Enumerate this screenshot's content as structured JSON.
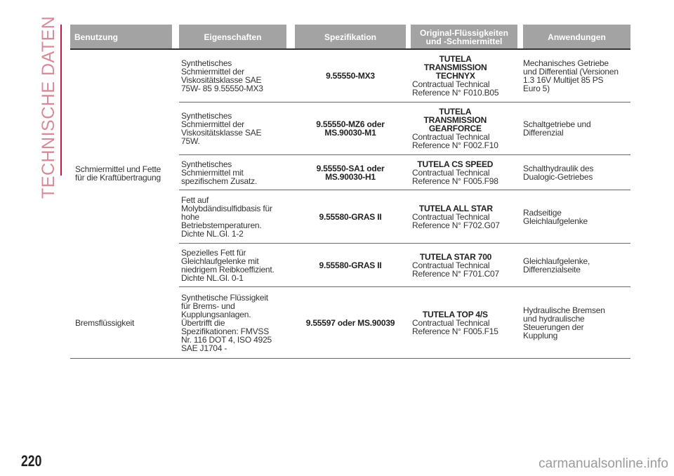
{
  "section_title": "TECHNISCHE DATEN",
  "page_number": "220",
  "watermark": "carmanualsonline.info",
  "colors": {
    "accent": "#c8193c",
    "header_bg": "#a3a3a3"
  },
  "headers": [
    "Benutzung",
    "Eigenschaften",
    "Spezifikation",
    "Original-Flüssigkeiten\nund -Schmiermittel",
    "Anwendungen"
  ],
  "groups": [
    {
      "label": "Schmiermittel und Fette\nfür die Kraftübertragung"
    },
    {
      "label": "Bremsflüssigkeit"
    }
  ],
  "rows": [
    {
      "properties": "Synthetisches\nSchmiermittel der\nViskositätsklasse SAE\n75W- 85 9.55550-MX3",
      "spec": "9.55550-MX3",
      "product": "TUTELA\nTRANSMISSION\nTECHNYX",
      "reference": "Contractual Technical\nReference N° F010.B05",
      "application": "Mechanisches Getriebe\nund Differential (Versionen\n1.3 16V Multijet 85 PS\nEuro 5)"
    },
    {
      "properties": "Synthetisches\nSchmiermittel der\nViskositätsklasse SAE\n75W.",
      "spec": "9.55550-MZ6 oder\nMS.90030-M1",
      "product": "TUTELA\nTRANSMISSION\nGEARFORCE",
      "reference": "Contractual Technical\nReference N° F002.F10",
      "application": "Schaltgetriebe und\nDifferenzial"
    },
    {
      "properties": "Synthetisches\nSchmiermittel mit\nspezifischem Zusatz.",
      "spec": "9.55550-SA1 oder\nMS.90030-H1",
      "product": "TUTELA CS SPEED",
      "reference": "Contractual Technical\nReference N° F005.F98",
      "application": "Schalthydraulik des\nDualogic-Getriebes"
    },
    {
      "properties": "Fett auf\nMolybdändisulfidbasis für\nhohe\nBetriebstemperaturen.\nDichte NL.Gl. 1-2",
      "spec": "9.55580-GRAS II",
      "product": "TUTELA ALL STAR",
      "reference": "Contractual Technical\nReference N° F702.G07",
      "application": "Radseitige\nGleichlaufgelenke"
    },
    {
      "properties": "Spezielles Fett für\nGleichlaufgelenke mit\nniedrigem Reibkoeffizient.\nDichte NL.Gl. 0-1",
      "spec": "9.55580-GRAS II",
      "product": "TUTELA STAR 700",
      "reference": "Contractual Technical\nReference N° F701.C07",
      "application": "Gleichlaufgelenke,\nDifferenzialseite"
    },
    {
      "properties": "Synthetische Flüssigkeit\nfür Brems- und\nKupplungsanlagen.\nÜbertrifft die\nSpezifikationen: FMVSS\nNr. 116 DOT 4, ISO 4925\nSAE J1704 -",
      "spec": "9.55597 oder MS.90039",
      "product": "TUTELA TOP 4/S",
      "reference": "Contractual Technical\nReference N° F005.F15",
      "application": "Hydraulische Bremsen\nund hydraulische\nSteuerungen der\nKupplung"
    }
  ]
}
